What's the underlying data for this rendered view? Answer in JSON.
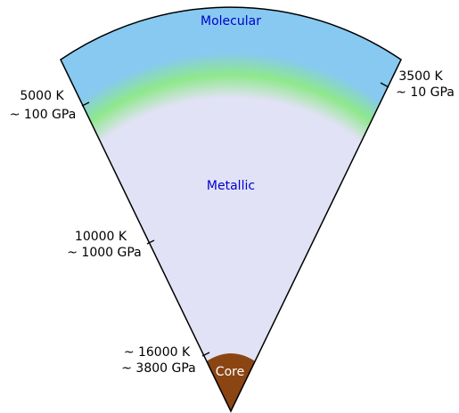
{
  "layers": {
    "molecular": "Molecular",
    "metallic": "Metallic",
    "core": "Core"
  },
  "annotations": [
    {
      "temperature": "5000 K",
      "pressure": "~ 100 GPa"
    },
    {
      "temperature": "3500 K",
      "pressure": "~ 10 GPa"
    },
    {
      "temperature": "10000 K",
      "pressure": "~ 1000 GPa"
    },
    {
      "temperature": "~ 16000 K",
      "pressure": "~ 3800 GPa"
    }
  ]
}
